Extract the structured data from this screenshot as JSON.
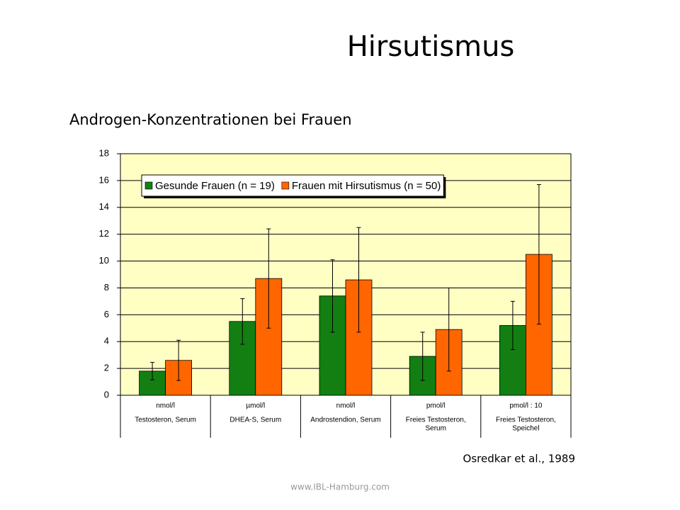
{
  "slide": {
    "title": "Hirsutismus",
    "source": "Osredkar et al., 1989",
    "footer": "www.IBL-Hamburg.com"
  },
  "chart_data": {
    "type": "bar",
    "title": "Androgen-Konzentrationen bei Frauen",
    "categories": [
      [
        "nmol/l",
        "Testosteron, Serum"
      ],
      [
        "µmol/l",
        "DHEA-S, Serum"
      ],
      [
        "nmol/l",
        "Androstendion, Serum"
      ],
      [
        "pmol/l",
        "Freies Testosteron,",
        "Serum"
      ],
      [
        "pmol/l : 10",
        "Freies Testosteron,",
        "Speichel"
      ]
    ],
    "series": [
      {
        "name": "Gesunde Frauen (n = 19)",
        "color": "#137f13",
        "values": [
          1.8,
          5.5,
          7.4,
          2.9,
          5.2
        ],
        "errors": [
          0.65,
          1.7,
          2.7,
          1.8,
          1.8
        ]
      },
      {
        "name": "Frauen mit Hirsutismus (n = 50)",
        "color": "#ff6600",
        "values": [
          2.6,
          8.7,
          8.6,
          4.9,
          10.5
        ],
        "errors": [
          1.5,
          3.7,
          3.9,
          3.1,
          5.2
        ]
      }
    ],
    "ylim": [
      0,
      18
    ],
    "yticks": [
      0,
      2,
      4,
      6,
      8,
      10,
      12,
      14,
      16,
      18
    ],
    "grid": true,
    "legend": "top",
    "background": "#ffffc4"
  }
}
